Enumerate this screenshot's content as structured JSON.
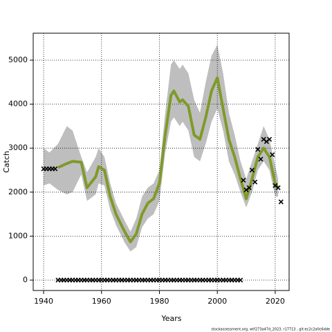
{
  "chart_data": {
    "type": "line",
    "xlabel": "Years",
    "ylabel": "Catch",
    "footer": "stockassessment.org, wtf273a47d_2023, r17713 , git:ec2c2a0c6dde",
    "xlim": [
      1936.4,
      2024.8
    ],
    "ylim": [
      -236,
      5613
    ],
    "xticks": [
      1940,
      1960,
      1980,
      2000,
      2020
    ],
    "yticks": [
      0,
      1000,
      2000,
      3000,
      4000,
      5000
    ],
    "grid": true,
    "band_color": "#bebebe",
    "line_color": "#7f9a2a",
    "marker_color": "#000000",
    "x": [
      1940,
      1942,
      1945,
      1948,
      1950,
      1953,
      1955,
      1958,
      1959,
      1961,
      1963,
      1965,
      1968,
      1970,
      1972,
      1974,
      1976,
      1978,
      1980,
      1982,
      1984,
      1985,
      1987,
      1988,
      1990,
      1992,
      1994,
      1996,
      1998,
      2000,
      2002,
      2004,
      2006,
      2008,
      2010,
      2012,
      2014,
      2016,
      2018,
      2020,
      2021
    ],
    "values": [
      null,
      null,
      2560,
      2650,
      2700,
      2680,
      2100,
      2350,
      2580,
      2500,
      1900,
      1500,
      1100,
      870,
      1050,
      1500,
      1750,
      1850,
      2200,
      3300,
      4200,
      4300,
      4050,
      4100,
      3950,
      3300,
      3200,
      3700,
      4300,
      4600,
      3900,
      3200,
      2800,
      2300,
      1850,
      2300,
      2800,
      3000,
      2800,
      2200,
      2100
    ],
    "upper": [
      3000,
      2900,
      3100,
      3500,
      3400,
      2800,
      2450,
      2800,
      3000,
      2800,
      2200,
      1750,
      1350,
      1100,
      1400,
      1900,
      2100,
      2200,
      2500,
      3800,
      4900,
      5000,
      4800,
      4900,
      4700,
      4100,
      3800,
      4500,
      5100,
      5350,
      4700,
      3800,
      3300,
      2700,
      2300,
      2700,
      3100,
      3500,
      3200,
      2600,
      2300
    ],
    "lower": [
      2150,
      2200,
      2050,
      1950,
      2000,
      2400,
      1800,
      1950,
      2200,
      2150,
      1600,
      1250,
      850,
      650,
      750,
      1200,
      1400,
      1500,
      1800,
      2900,
      3600,
      3700,
      3500,
      3600,
      3400,
      2800,
      2700,
      3100,
      3600,
      3900,
      3400,
      2700,
      2400,
      2000,
      1650,
      2000,
      2500,
      2700,
      2500,
      1900,
      1900
    ],
    "observed": {
      "x": [
        1940,
        1941,
        1942,
        1943,
        1944,
        1945,
        1946,
        1947,
        1948,
        1949,
        1950,
        1951,
        1952,
        1953,
        1954,
        1955,
        1956,
        1957,
        1958,
        1959,
        1960,
        1961,
        1962,
        1963,
        1964,
        1965,
        1966,
        1967,
        1968,
        1969,
        1970,
        1971,
        1972,
        1973,
        1974,
        1975,
        1976,
        1977,
        1978,
        1979,
        1980,
        1981,
        1982,
        1983,
        1984,
        1985,
        1986,
        1987,
        1988,
        1989,
        1990,
        1991,
        1992,
        1993,
        1994,
        1995,
        1996,
        1997,
        1998,
        1999,
        2000,
        2001,
        2002,
        2003,
        2004,
        2005,
        2006,
        2007,
        2008,
        2009,
        2010,
        2011,
        2012,
        2013,
        2014,
        2015,
        2016,
        2017,
        2018,
        2019,
        2020,
        2021,
        2022
      ],
      "values": [
        2530,
        2530,
        2530,
        2530,
        2530,
        0,
        0,
        0,
        0,
        0,
        0,
        0,
        0,
        0,
        0,
        0,
        0,
        0,
        0,
        0,
        0,
        0,
        0,
        0,
        0,
        0,
        0,
        0,
        0,
        0,
        0,
        0,
        0,
        0,
        0,
        0,
        0,
        0,
        0,
        0,
        0,
        0,
        0,
        0,
        0,
        0,
        0,
        0,
        0,
        0,
        0,
        0,
        0,
        0,
        0,
        0,
        0,
        0,
        0,
        0,
        0,
        0,
        0,
        0,
        0,
        0,
        0,
        0,
        0,
        2270,
        2050,
        2100,
        2500,
        2230,
        2970,
        2750,
        3200,
        3150,
        3200,
        2850,
        2150,
        2100,
        1780
      ]
    }
  }
}
